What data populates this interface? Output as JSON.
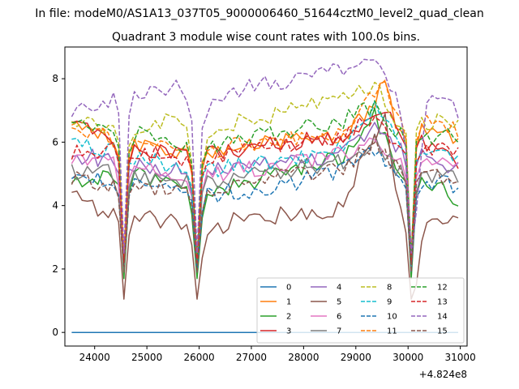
{
  "suptitle": "In file: modeM0/AS1A13_037T05_9000006460_51644cztM0_level2_quad_clean",
  "chart_data": {
    "type": "line",
    "title": "Quadrant 3 module wise count rates with 100.0s bins.",
    "xlabel": "",
    "ylabel": "",
    "x_offset_label": "+4.824e8",
    "xlim": [
      23430,
      31130
    ],
    "ylim": [
      -0.43,
      9.0
    ],
    "x_ticks": [
      24000,
      25000,
      26000,
      27000,
      28000,
      29000,
      30000,
      31000
    ],
    "x_tick_labels": [
      "24000",
      "25000",
      "26000",
      "27000",
      "28000",
      "29000",
      "30000",
      "31000"
    ],
    "y_ticks": [
      0,
      2,
      4,
      6,
      8
    ],
    "y_tick_labels": [
      "0",
      "2",
      "4",
      "6",
      "8"
    ],
    "x_start": 23560,
    "x_step": 100,
    "n_points": 75,
    "dips": [
      10,
      24,
      65
    ],
    "grid": false,
    "legend_position": "lower right",
    "legend_columns": 4,
    "series": [
      {
        "name": "0",
        "color": "#1f77b4",
        "dash": "solid",
        "base": 0.0,
        "dipTo": 0.0,
        "anchors": [
          [
            0,
            0
          ],
          [
            74,
            0
          ]
        ]
      },
      {
        "name": "1",
        "color": "#ff7f0e",
        "dash": "solid",
        "base": 6.0,
        "dipTo": 2.3,
        "anchors": [
          [
            0,
            6.6
          ],
          [
            10,
            5.9
          ],
          [
            24,
            5.6
          ],
          [
            40,
            6.0
          ],
          [
            52,
            6.2
          ],
          [
            58,
            7.3
          ],
          [
            60,
            8.1
          ],
          [
            62,
            6.6
          ],
          [
            74,
            6.1
          ]
        ]
      },
      {
        "name": "2",
        "color": "#2ca02c",
        "dash": "solid",
        "base": 5.0,
        "dipTo": 1.7,
        "anchors": [
          [
            0,
            4.6
          ],
          [
            10,
            5.0
          ],
          [
            20,
            4.8
          ],
          [
            24,
            4.1
          ],
          [
            30,
            4.6
          ],
          [
            40,
            5.0
          ],
          [
            52,
            5.6
          ],
          [
            58,
            6.8
          ],
          [
            62,
            5.3
          ],
          [
            74,
            4.2
          ]
        ]
      },
      {
        "name": "3",
        "color": "#d62728",
        "dash": "solid",
        "base": 5.8,
        "dipTo": 2.3,
        "anchors": [
          [
            0,
            6.6
          ],
          [
            10,
            5.7
          ],
          [
            24,
            5.6
          ],
          [
            40,
            6.0
          ],
          [
            52,
            6.1
          ],
          [
            58,
            6.9
          ],
          [
            60,
            7.2
          ],
          [
            62,
            6.4
          ],
          [
            74,
            5.4
          ]
        ]
      },
      {
        "name": "4",
        "color": "#9467bd",
        "dash": "solid",
        "base": 5.6,
        "dipTo": 2.2,
        "anchors": [
          [
            0,
            5.6
          ],
          [
            10,
            5.4
          ],
          [
            24,
            5.0
          ],
          [
            40,
            5.4
          ],
          [
            52,
            5.6
          ],
          [
            58,
            6.5
          ],
          [
            62,
            5.8
          ],
          [
            74,
            5.2
          ]
        ]
      },
      {
        "name": "5",
        "color": "#8c564b",
        "dash": "solid",
        "base": 3.6,
        "dipTo": 1.05,
        "anchors": [
          [
            0,
            4.3
          ],
          [
            4,
            3.9
          ],
          [
            10,
            3.7
          ],
          [
            20,
            3.5
          ],
          [
            24,
            2.9
          ],
          [
            30,
            3.5
          ],
          [
            40,
            3.7
          ],
          [
            52,
            3.9
          ],
          [
            56,
            5.6
          ],
          [
            60,
            6.9
          ],
          [
            62,
            4.5
          ],
          [
            64,
            3.6
          ],
          [
            66,
            2.1
          ],
          [
            68,
            3.5
          ],
          [
            74,
            3.6
          ]
        ]
      },
      {
        "name": "6",
        "color": "#e377c2",
        "dash": "solid",
        "base": 5.3,
        "dipTo": 2.2,
        "anchors": [
          [
            0,
            5.4
          ],
          [
            10,
            5.3
          ],
          [
            24,
            4.9
          ],
          [
            40,
            5.3
          ],
          [
            52,
            5.6
          ],
          [
            58,
            6.2
          ],
          [
            62,
            5.4
          ],
          [
            74,
            5.2
          ]
        ]
      },
      {
        "name": "7",
        "color": "#7f7f7f",
        "dash": "solid",
        "base": 5.1,
        "dipTo": 2.0,
        "anchors": [
          [
            0,
            5.1
          ],
          [
            10,
            5.0
          ],
          [
            24,
            4.7
          ],
          [
            40,
            5.1
          ],
          [
            52,
            5.4
          ],
          [
            58,
            6.0
          ],
          [
            62,
            5.2
          ],
          [
            74,
            4.8
          ]
        ]
      },
      {
        "name": "8",
        "color": "#bcbd22",
        "dash": "dashed",
        "base": 6.6,
        "dipTo": 2.3,
        "anchors": [
          [
            0,
            6.8
          ],
          [
            10,
            6.2
          ],
          [
            20,
            6.8
          ],
          [
            24,
            5.6
          ],
          [
            30,
            6.6
          ],
          [
            40,
            6.9
          ],
          [
            52,
            7.4
          ],
          [
            58,
            7.8
          ],
          [
            62,
            6.7
          ],
          [
            74,
            6.6
          ]
        ]
      },
      {
        "name": "9",
        "color": "#17becf",
        "dash": "dashed",
        "base": 5.5,
        "dipTo": 2.3,
        "anchors": [
          [
            0,
            6.0
          ],
          [
            10,
            5.6
          ],
          [
            24,
            5.1
          ],
          [
            40,
            5.4
          ],
          [
            52,
            5.8
          ],
          [
            58,
            7.2
          ],
          [
            62,
            6.1
          ],
          [
            74,
            5.4
          ]
        ]
      },
      {
        "name": "10",
        "color": "#1f77b4",
        "dash": "dashed",
        "base": 4.8,
        "dipTo": 1.9,
        "anchors": [
          [
            0,
            4.9
          ],
          [
            10,
            4.7
          ],
          [
            24,
            4.3
          ],
          [
            40,
            4.6
          ],
          [
            52,
            5.1
          ],
          [
            58,
            5.7
          ],
          [
            62,
            4.9
          ],
          [
            74,
            4.6
          ]
        ]
      },
      {
        "name": "11",
        "color": "#ff7f0e",
        "dash": "dashed",
        "base": 6.1,
        "dipTo": 2.3,
        "anchors": [
          [
            0,
            6.5
          ],
          [
            10,
            6.0
          ],
          [
            24,
            5.7
          ],
          [
            40,
            6.1
          ],
          [
            52,
            6.4
          ],
          [
            58,
            7.5
          ],
          [
            60,
            8.0
          ],
          [
            62,
            6.8
          ],
          [
            74,
            6.4
          ]
        ]
      },
      {
        "name": "12",
        "color": "#2ca02c",
        "dash": "dashed",
        "base": 6.3,
        "dipTo": 2.3,
        "anchors": [
          [
            0,
            6.5
          ],
          [
            10,
            6.4
          ],
          [
            24,
            5.8
          ],
          [
            40,
            6.3
          ],
          [
            52,
            6.7
          ],
          [
            58,
            7.1
          ],
          [
            62,
            6.2
          ],
          [
            74,
            6.2
          ]
        ]
      },
      {
        "name": "13",
        "color": "#d62728",
        "dash": "dashed",
        "base": 5.9,
        "dipTo": 2.2,
        "anchors": [
          [
            0,
            5.7
          ],
          [
            10,
            5.8
          ],
          [
            24,
            5.4
          ],
          [
            40,
            5.9
          ],
          [
            52,
            6.2
          ],
          [
            58,
            6.9
          ],
          [
            62,
            6.0
          ],
          [
            74,
            5.7
          ]
        ]
      },
      {
        "name": "14",
        "color": "#9467bd",
        "dash": "dashed",
        "base": 7.6,
        "dipTo": 2.5,
        "anchors": [
          [
            0,
            7.0
          ],
          [
            4,
            7.2
          ],
          [
            10,
            7.4
          ],
          [
            20,
            7.8
          ],
          [
            24,
            6.6
          ],
          [
            30,
            7.6
          ],
          [
            40,
            7.9
          ],
          [
            52,
            8.3
          ],
          [
            58,
            8.5
          ],
          [
            62,
            7.6
          ],
          [
            66,
            4.3
          ],
          [
            68,
            7.3
          ],
          [
            74,
            7.0
          ]
        ]
      },
      {
        "name": "15",
        "color": "#8c564b",
        "dash": "dashed",
        "base": 5.0,
        "dipTo": 1.9,
        "anchors": [
          [
            0,
            4.9
          ],
          [
            10,
            4.6
          ],
          [
            24,
            4.5
          ],
          [
            40,
            4.9
          ],
          [
            52,
            5.2
          ],
          [
            58,
            6.0
          ],
          [
            62,
            5.2
          ],
          [
            74,
            4.7
          ]
        ]
      }
    ]
  }
}
